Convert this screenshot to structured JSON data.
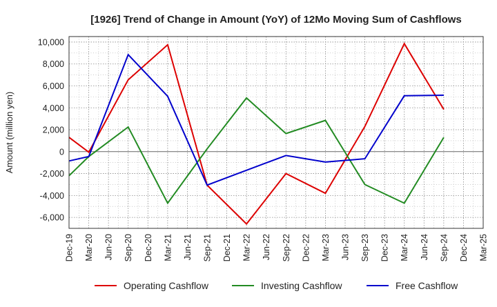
{
  "chart_data": {
    "type": "line",
    "title": "[1926]  Trend of Change in Amount (YoY) of 12Mo Moving Sum of Cashflows",
    "xlabel": "",
    "ylabel": "Amount (million yen)",
    "categories": [
      "Dec-19",
      "Mar-20",
      "Jun-20",
      "Sep-20",
      "Dec-20",
      "Mar-21",
      "Jun-21",
      "Sep-21",
      "Dec-21",
      "Mar-22",
      "Jun-22",
      "Sep-22",
      "Dec-22",
      "Mar-23",
      "Jun-23",
      "Sep-23",
      "Dec-23",
      "Mar-24",
      "Jun-24",
      "Sep-24",
      "Dec-24",
      "Mar-25"
    ],
    "ylim": [
      -7000,
      10500
    ],
    "yticks": [
      -6000,
      -4000,
      -2000,
      0,
      2000,
      4000,
      6000,
      8000,
      10000
    ],
    "ytick_labels": [
      "-6,000",
      "-4,000",
      "-2,000",
      "0",
      "2,000",
      "4,000",
      "6,000",
      "8,000",
      "10,000"
    ],
    "grid": true,
    "legend_position": "bottom",
    "series": [
      {
        "name": "Operating Cashflow",
        "color": "#dd0000",
        "values": [
          1300,
          -50,
          null,
          6550,
          null,
          9750,
          null,
          -3050,
          null,
          -6600,
          null,
          -2000,
          null,
          -3800,
          null,
          2300,
          null,
          9850,
          null,
          3850,
          null,
          null
        ]
      },
      {
        "name": "Investing Cashflow",
        "color": "#228b22",
        "values": [
          -2200,
          -450,
          null,
          2250,
          null,
          -4700,
          null,
          250,
          null,
          4900,
          null,
          1650,
          null,
          2850,
          null,
          -3000,
          null,
          -4700,
          null,
          1300,
          null,
          null
        ]
      },
      {
        "name": "Free Cashflow",
        "color": "#0000cc",
        "values": [
          -850,
          -450,
          null,
          8850,
          null,
          5050,
          null,
          -3050,
          null,
          -1700,
          null,
          -350,
          null,
          -950,
          null,
          -650,
          null,
          5100,
          null,
          5150,
          null,
          null
        ]
      }
    ]
  }
}
